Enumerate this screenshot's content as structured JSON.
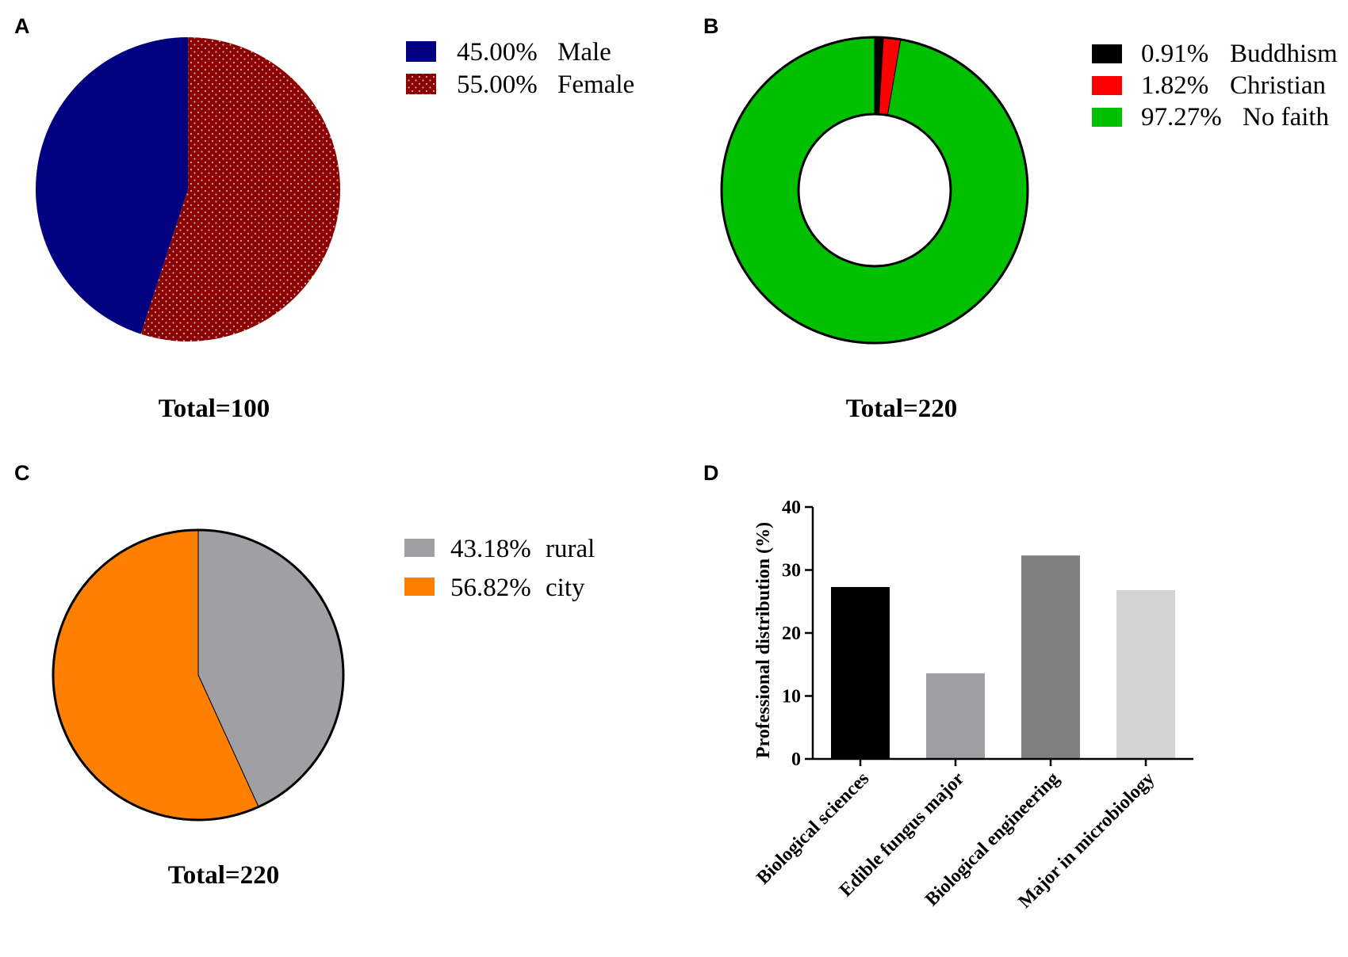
{
  "chart_data": [
    {
      "panel": "A",
      "type": "pie",
      "slices": [
        {
          "label": "Male",
          "percent": "45.00%",
          "value": 45.0,
          "color": "#000080",
          "pattern": "none"
        },
        {
          "label": "Female",
          "percent": "55.00%",
          "value": 55.0,
          "color": "#8B0000",
          "pattern": "dots"
        }
      ],
      "total_label": "Total=100"
    },
    {
      "panel": "B",
      "type": "donut",
      "slices": [
        {
          "label": "Buddhism",
          "percent": "0.91%",
          "value": 0.91,
          "color": "#000000"
        },
        {
          "label": "Christian",
          "percent": "1.82%",
          "value": 1.82,
          "color": "#FF0000"
        },
        {
          "label": "No faith",
          "percent": "97.27%",
          "value": 97.27,
          "color": "#00C000"
        }
      ],
      "total_label": "Total=220"
    },
    {
      "panel": "C",
      "type": "pie",
      "slices": [
        {
          "label": "rural",
          "percent": "43.18%",
          "value": 43.18,
          "color": "#A0A0A4"
        },
        {
          "label": "city",
          "percent": "56.82%",
          "value": 56.82,
          "color": "#FF8000"
        }
      ],
      "total_label": "Total=220"
    },
    {
      "panel": "D",
      "type": "bar",
      "ylabel": "Professional distribution (%)",
      "xlabel": "",
      "ylim": [
        0,
        40
      ],
      "yticks": [
        0,
        10,
        20,
        30,
        40
      ],
      "categories": [
        "Biological sciences",
        "Edible fungus major",
        "Biological engineering",
        "Major in microbiology"
      ],
      "values": [
        27.3,
        13.6,
        32.3,
        26.8
      ],
      "colors": [
        "#000000",
        "#A0A0A4",
        "#808080",
        "#D3D3D3"
      ]
    }
  ]
}
